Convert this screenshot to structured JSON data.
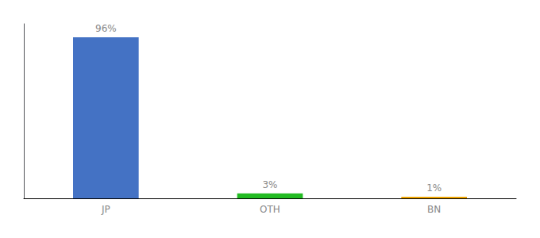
{
  "chart_data": {
    "type": "bar",
    "categories": [
      "JP",
      "OTH",
      "BN"
    ],
    "values": [
      96,
      3,
      1
    ],
    "value_labels": [
      "96%",
      "3%",
      "1%"
    ],
    "colors": [
      "#4472c4",
      "#22bb22",
      "#f0a500"
    ],
    "ylim": [
      0,
      104
    ],
    "data_labels": true,
    "tick_labels": "x",
    "grid": false
  }
}
